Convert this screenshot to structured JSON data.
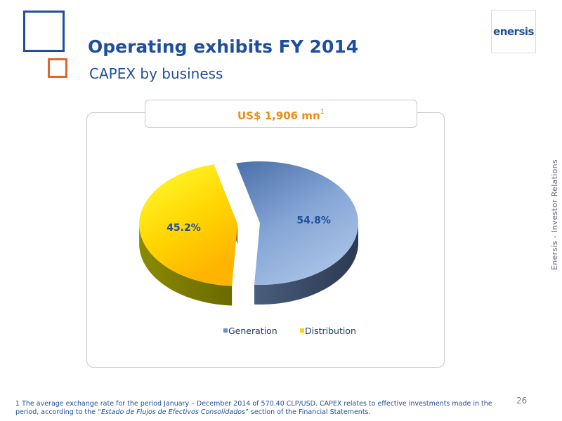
{
  "header": {
    "title": "Operating exhibits FY 2014",
    "subtitle": "CAPEX by business",
    "logo_text": "enersis",
    "side_text": "Enersis - Investor Relations"
  },
  "total": {
    "label": "US$ 1,906 mn",
    "footnote_ref": "1"
  },
  "chart_data": {
    "type": "pie",
    "categories": [
      "Generation",
      "Distribution"
    ],
    "values": [
      54.8,
      45.2
    ],
    "data_labels": [
      "54.8%",
      "45.2%"
    ],
    "colors": [
      "#7f9fd2",
      "#ffd200"
    ],
    "legend_position": "bottom",
    "exploded": [
      "Distribution"
    ]
  },
  "footnote": {
    "before": "1 The average exchange rate for the period January – December 2014 of  570.40 CLP/USD. CAPEX relates to effective investments made in the period, according to the “",
    "italic": "Estado de Flujos de Efectivos Consolidados",
    "after": "” section of the Financial Statements."
  },
  "page_number": "26"
}
